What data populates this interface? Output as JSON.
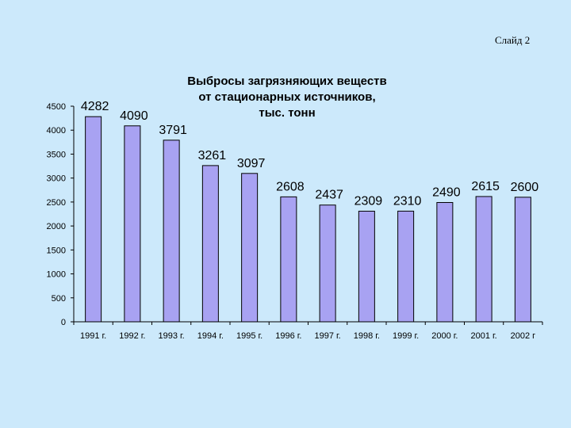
{
  "slide": {
    "label": "Слайд 2"
  },
  "chart_data": {
    "type": "bar",
    "title": "Выбросы загрязняющих веществ от стационарных источников, тыс. тонн",
    "title_lines": [
      "Выбросы загрязняющих веществ",
      "от стационарных источников,",
      "тыс. тонн"
    ],
    "categories": [
      "1991 г.",
      "1992 г.",
      "1993 г.",
      "1994 г.",
      "1995 г.",
      "1996 г.",
      "1997 г.",
      "1998 г.",
      "1999 г.",
      "2000 г.",
      "2001 г.",
      "2002 г"
    ],
    "values": [
      4282,
      4090,
      3791,
      3261,
      3097,
      2608,
      2437,
      2309,
      2310,
      2490,
      2615,
      2600
    ],
    "data_labels": [
      "4282",
      "4090",
      "3791",
      "3261",
      "3097",
      "2608",
      "2437",
      "2309",
      "2310",
      "2490",
      "2615",
      "2600"
    ],
    "ylim": [
      0,
      4500
    ],
    "yticks": [
      0,
      500,
      1000,
      1500,
      2000,
      2500,
      3000,
      3500,
      4000,
      4500
    ],
    "xlabel": "",
    "ylabel": "",
    "grid": false,
    "legend": "none",
    "bar_color": "#a8a2f2",
    "background_color": "#cce9fb"
  }
}
